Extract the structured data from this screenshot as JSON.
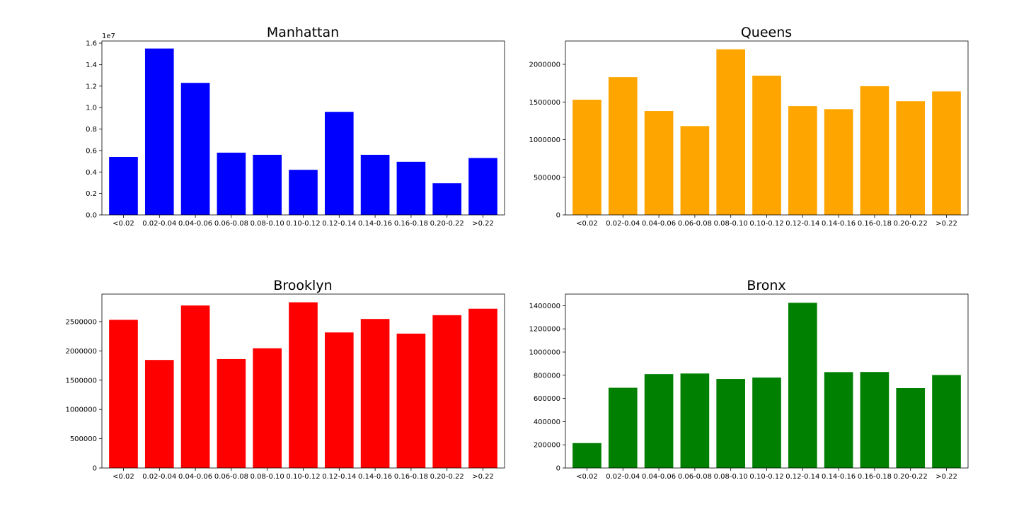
{
  "chart_data": [
    {
      "type": "bar",
      "title": "Manhattan",
      "color": "#0000ff",
      "categories": [
        "<0.02",
        "0.02-0.04",
        "0.04-0.06",
        "0.06-0.08",
        "0.08-0.10",
        "0.10-0.12",
        "0.12-0.14",
        "0.14-0.16",
        "0.16-0.18",
        "0.20-0.22",
        ">0.22"
      ],
      "values": [
        5.4,
        15.5,
        12.3,
        5.8,
        5.6,
        4.2,
        9.6,
        5.6,
        4.95,
        2.95,
        5.3
      ],
      "ylim": [
        0,
        1.62
      ],
      "yticks": [
        0.0,
        0.2,
        0.4,
        0.6,
        0.8,
        1.0,
        1.2,
        1.4,
        1.6
      ],
      "ytick_labels": [
        "0.0",
        "0.2",
        "0.4",
        "0.6",
        "0.8",
        "1.0",
        "1.2",
        "1.4",
        "1.6"
      ],
      "value_scale": 10,
      "offset_label": "1e7",
      "xlabel": "",
      "ylabel": "",
      "grid": false
    },
    {
      "type": "bar",
      "title": "Queens",
      "color": "#ffa500",
      "categories": [
        "<0.02",
        "0.02-0.04",
        "0.04-0.06",
        "0.06-0.08",
        "0.08-0.10",
        "0.10-0.12",
        "0.12-0.14",
        "0.14-0.16",
        "0.16-0.18",
        "0.20-0.22",
        ">0.22"
      ],
      "values": [
        1530000,
        1830000,
        1380000,
        1180000,
        2200000,
        1850000,
        1445000,
        1405000,
        1710000,
        1510000,
        1640000
      ],
      "ylim": [
        0,
        2310000
      ],
      "yticks": [
        0,
        500000,
        1000000,
        1500000,
        2000000
      ],
      "ytick_labels": [
        "0",
        "500000",
        "1000000",
        "1500000",
        "2000000"
      ],
      "value_scale": 1,
      "offset_label": "",
      "xlabel": "",
      "ylabel": "",
      "grid": false
    },
    {
      "type": "bar",
      "title": "Brooklyn",
      "color": "#ff0000",
      "categories": [
        "<0.02",
        "0.02-0.04",
        "0.04-0.06",
        "0.06-0.08",
        "0.08-0.10",
        "0.10-0.12",
        "0.12-0.14",
        "0.14-0.16",
        "0.16-0.18",
        "0.20-0.22",
        ">0.22"
      ],
      "values": [
        2530000,
        1845000,
        2775000,
        1860000,
        2045000,
        2830000,
        2315000,
        2545000,
        2295000,
        2610000,
        2720000
      ],
      "ylim": [
        0,
        2970000
      ],
      "yticks": [
        0,
        500000,
        1000000,
        1500000,
        2000000,
        2500000
      ],
      "ytick_labels": [
        "0",
        "500000",
        "1000000",
        "1500000",
        "2000000",
        "2500000"
      ],
      "value_scale": 1,
      "offset_label": "",
      "xlabel": "",
      "ylabel": "",
      "grid": false
    },
    {
      "type": "bar",
      "title": "Bronx",
      "color": "#008000",
      "categories": [
        "<0.02",
        "0.02-0.04",
        "0.04-0.06",
        "0.06-0.08",
        "0.08-0.10",
        "0.10-0.12",
        "0.12-0.14",
        "0.14-0.16",
        "0.16-0.18",
        "0.20-0.22",
        ">0.22"
      ],
      "values": [
        215000,
        692000,
        810000,
        815000,
        768000,
        780000,
        1425000,
        827000,
        828000,
        689000,
        802000
      ],
      "ylim": [
        0,
        1500000
      ],
      "yticks": [
        0,
        200000,
        400000,
        600000,
        800000,
        1000000,
        1200000,
        1400000
      ],
      "ytick_labels": [
        "0",
        "200000",
        "400000",
        "600000",
        "800000",
        "1000000",
        "1200000",
        "1400000"
      ],
      "value_scale": 1,
      "offset_label": "",
      "xlabel": "",
      "ylabel": "",
      "grid": false
    }
  ]
}
